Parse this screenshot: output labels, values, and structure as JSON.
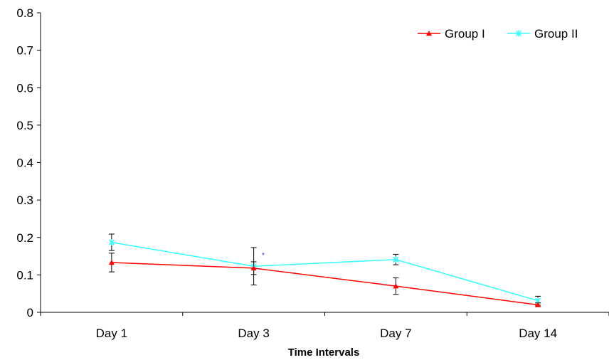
{
  "chart_data": {
    "type": "line",
    "xlabel": "Time Intervals",
    "ylabel": "",
    "categories": [
      "Day 1",
      "Day 3",
      "Day 7",
      "Day 14"
    ],
    "ylim": [
      0,
      0.8
    ],
    "yticks": [
      "0",
      "0.1",
      "0.2",
      "0.3",
      "0.4",
      "0.5",
      "0.6",
      "0.7",
      "0.8"
    ],
    "legend_position": "top-right",
    "grid": false,
    "series": [
      {
        "name": "Group I",
        "color": "#ff0000",
        "marker": "triangle",
        "values": [
          0.133,
          0.118,
          0.07,
          0.02
        ],
        "errors": [
          0.025,
          0.017,
          0.022,
          0.005
        ]
      },
      {
        "name": "Group II",
        "color": "#33ffff",
        "marker": "star",
        "values": [
          0.187,
          0.123,
          0.141,
          0.031
        ],
        "errors": [
          0.022,
          0.05,
          0.014,
          0.012
        ]
      }
    ],
    "annotations": [
      "*"
    ]
  }
}
